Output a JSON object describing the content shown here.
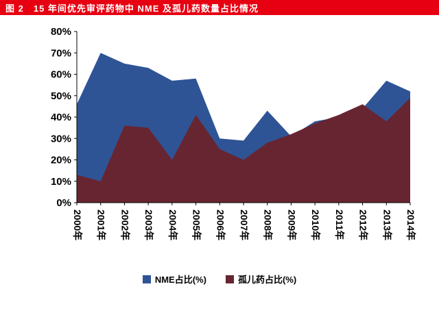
{
  "header": {
    "title": "图 2　15 年间优先审评药物中 NME 及孤儿药数量占比情况",
    "bg_color": "#e60012",
    "text_color": "#ffffff"
  },
  "chart_data": {
    "type": "area",
    "mode": "overlapping",
    "title": "15 年间优先审评药物中 NME 及孤儿药数量占比情况",
    "categories": [
      "2000年",
      "2001年",
      "2002年",
      "2003年",
      "2004年",
      "2005年",
      "2006年",
      "2007年",
      "2008年",
      "2009年",
      "2010年",
      "2011年",
      "2012年",
      "2013年",
      "2014年"
    ],
    "series": [
      {
        "name": "NME占比(%)",
        "color": "#2f5496",
        "values": [
          46,
          70,
          65,
          63,
          57,
          58,
          30,
          29,
          43,
          31,
          38,
          40,
          44,
          57,
          52
        ]
      },
      {
        "name": "孤儿药占比(%)",
        "color": "#672531",
        "values": [
          13,
          10,
          36,
          35,
          20,
          41,
          25,
          20,
          28,
          32,
          37,
          41,
          46,
          38,
          49
        ]
      }
    ],
    "xlabel": "",
    "ylabel": "",
    "ylim": [
      0,
      80
    ],
    "ytick_step": 10,
    "ytick_labels": [
      "0%",
      "10%",
      "20%",
      "30%",
      "40%",
      "50%",
      "60%",
      "70%",
      "80%"
    ],
    "grid": false,
    "legend_position": "bottom",
    "axis_color": "#000000"
  }
}
